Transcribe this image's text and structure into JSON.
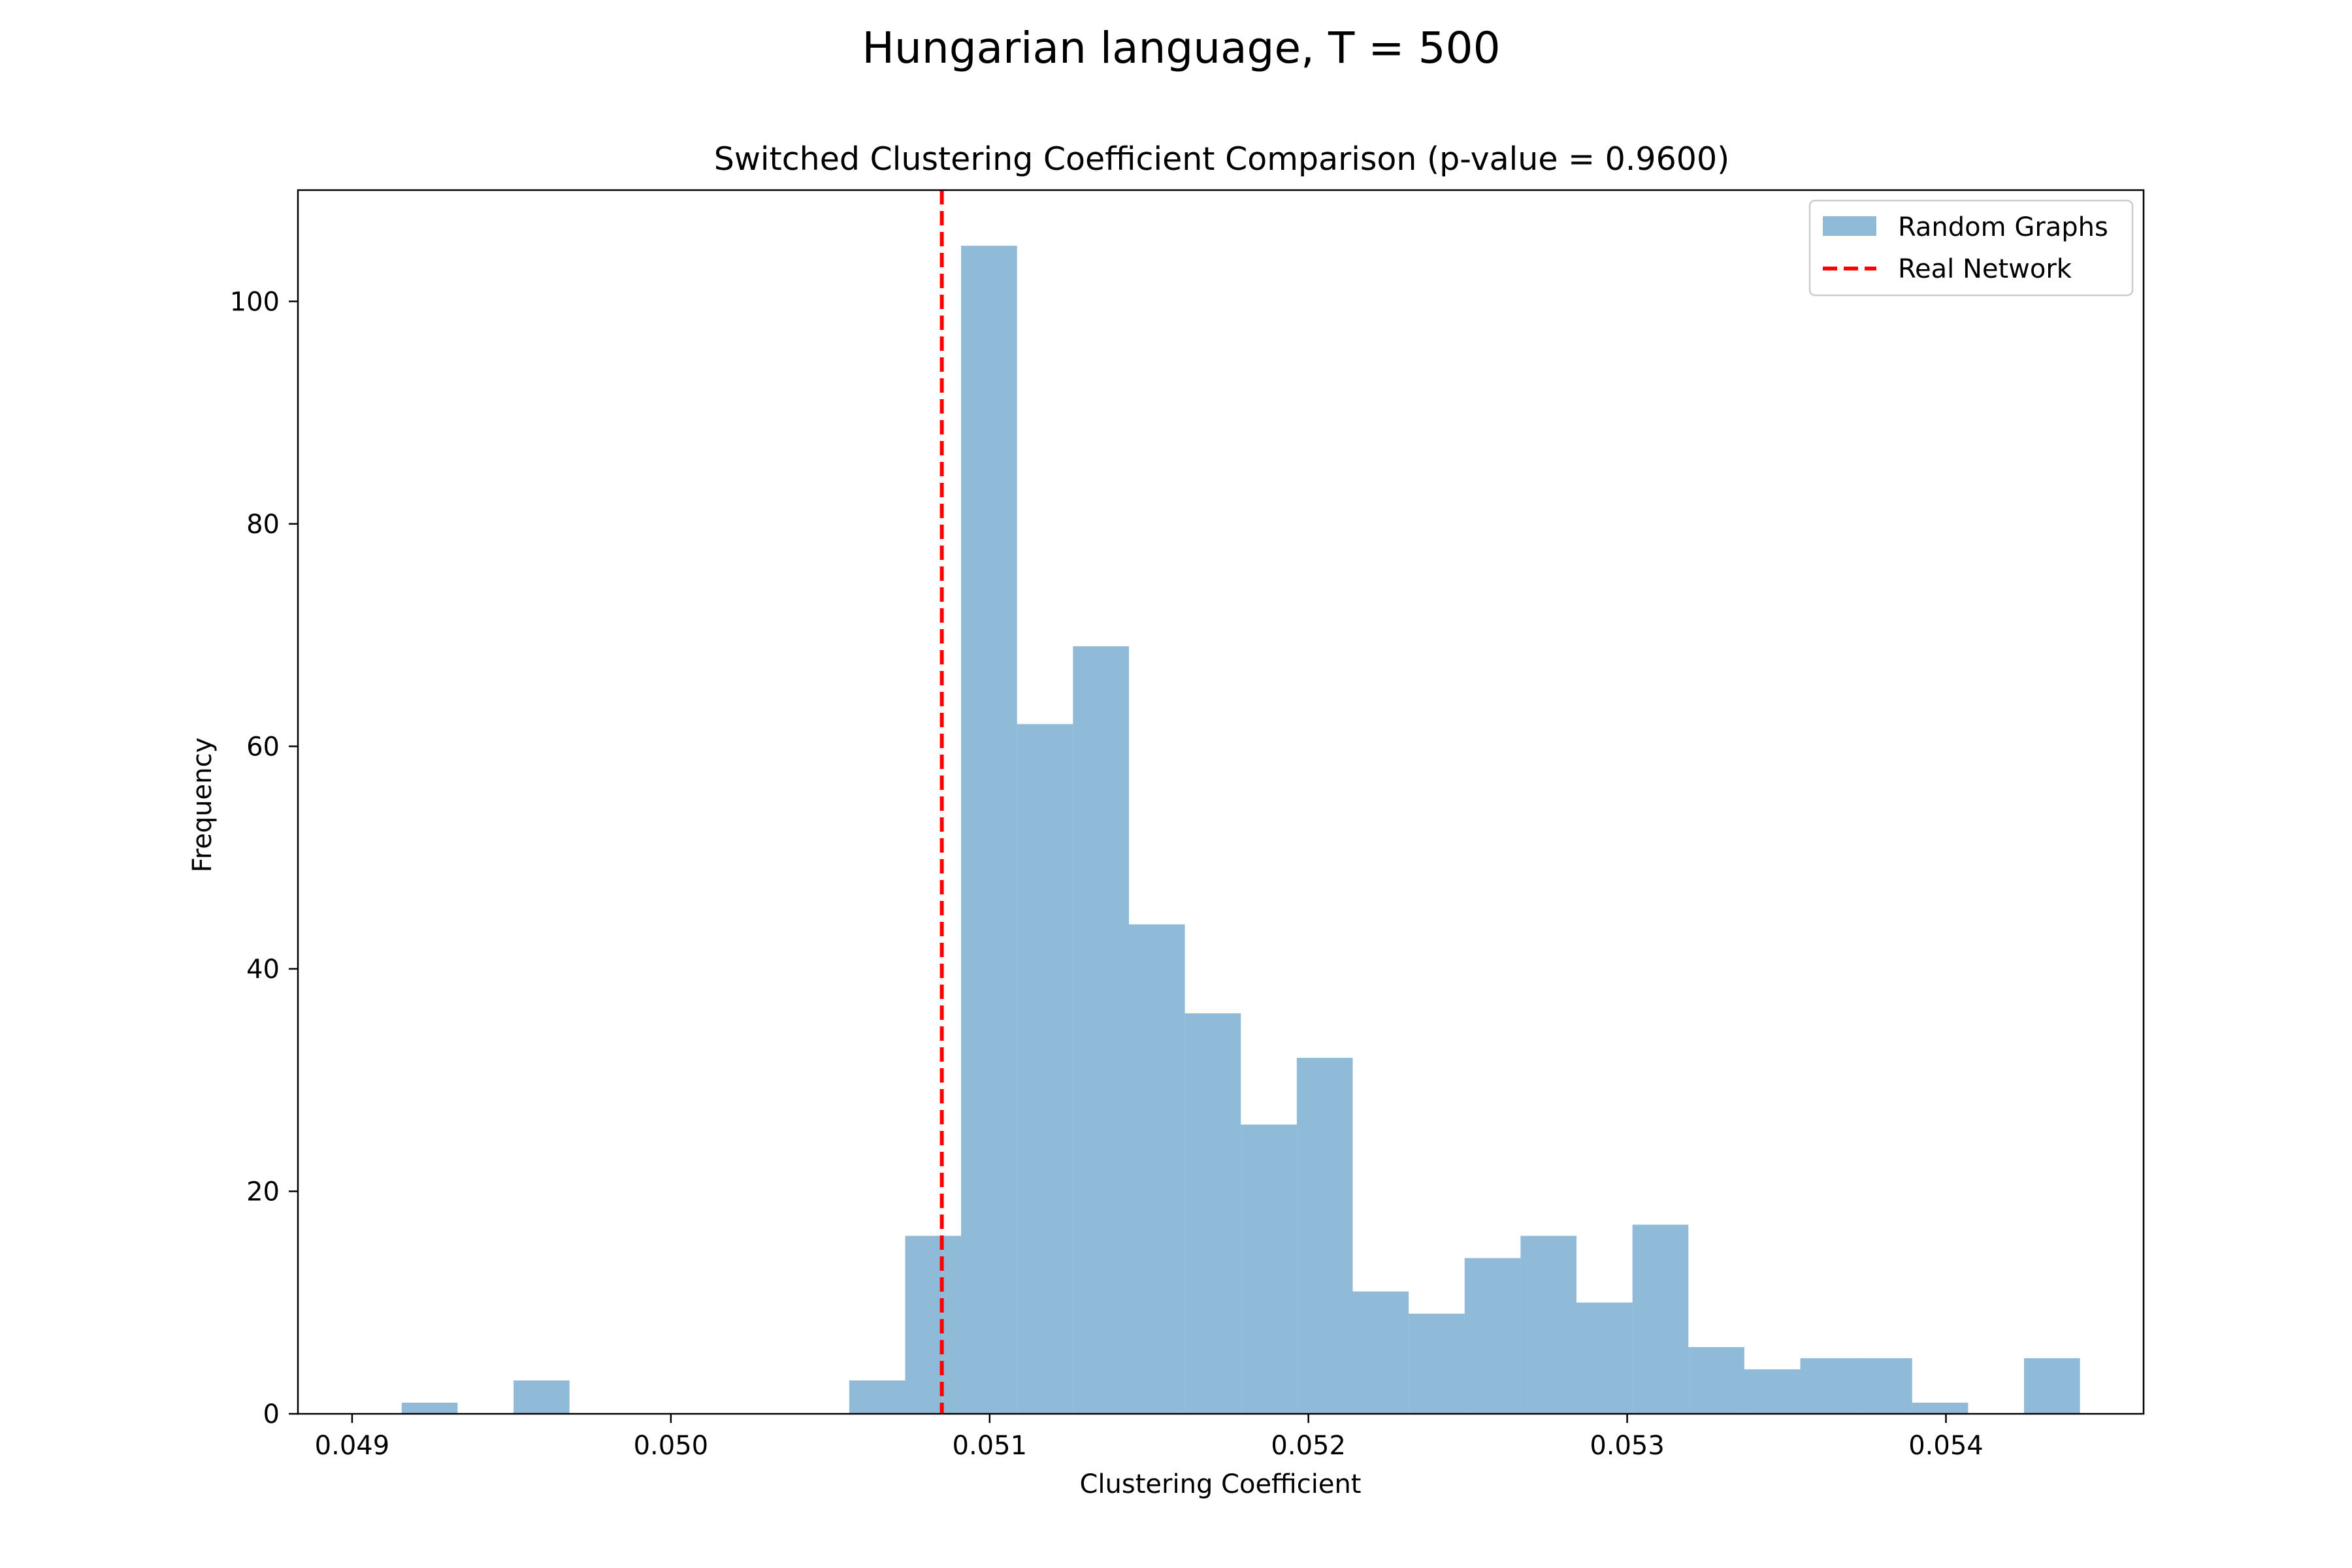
{
  "figure": {
    "suptitle": "Hungarian language, T = 500"
  },
  "chart_data": {
    "type": "bar",
    "title": "Switched Clustering Coefficient Comparison (p-value = 0.9600)",
    "xlabel": "Clustering Coefficient",
    "ylabel": "Frequency",
    "xlim": [
      0.04883,
      0.05462
    ],
    "ylim": [
      0,
      110
    ],
    "grid": false,
    "legend_position": "top-right",
    "x_ticks": [
      0.049,
      0.05,
      0.051,
      0.052,
      0.053,
      0.054
    ],
    "x_tick_labels": [
      "0.049",
      "0.050",
      "0.051",
      "0.052",
      "0.053",
      "0.054"
    ],
    "y_ticks": [
      0,
      20,
      40,
      60,
      80,
      100
    ],
    "y_tick_labels": [
      "0",
      "20",
      "40",
      "60",
      "80",
      "100"
    ],
    "series": [
      {
        "name": "Random Graphs",
        "color": "#1f77b4",
        "alpha": 0.5,
        "bin_start": 0.04898,
        "bin_width": 0.0001755,
        "counts": [
          0,
          1,
          0,
          3,
          0,
          0,
          0,
          0,
          0,
          3,
          16,
          105,
          62,
          69,
          44,
          36,
          26,
          32,
          11,
          9,
          14,
          16,
          10,
          17,
          6,
          4,
          5,
          5,
          1,
          0,
          5
        ]
      },
      {
        "name": "Real Network",
        "color": "#ff0000",
        "style": "dashed",
        "x": 0.05085
      }
    ]
  }
}
